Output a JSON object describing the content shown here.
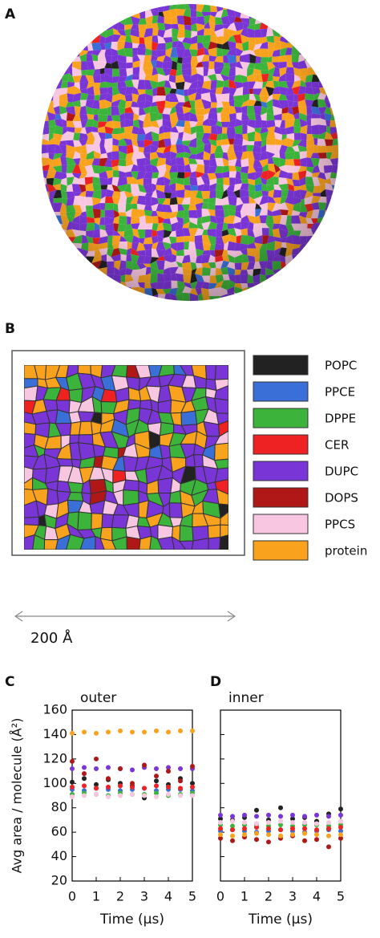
{
  "panels": [
    "A",
    "B",
    "C",
    "D"
  ],
  "legend": [
    {
      "name": "POPC",
      "color": "#222222"
    },
    {
      "name": "PPCE",
      "color": "#3a6fd8"
    },
    {
      "name": "DPPE",
      "color": "#3cb43c"
    },
    {
      "name": "CER",
      "color": "#ee2222"
    },
    {
      "name": "DUPC",
      "color": "#7a35d6"
    },
    {
      "name": "DOPS",
      "color": "#b01818"
    },
    {
      "name": "PPCS",
      "color": "#f8c6e0"
    },
    {
      "name": "protein",
      "color": "#f9a21e"
    }
  ],
  "scale_bar": "200 Å",
  "chart_data": [
    {
      "type": "scatter",
      "title": "outer",
      "xlabel": "Time (μs)",
      "ylabel": "Avg area / molecule (Å²)",
      "xlim": [
        0,
        5
      ],
      "xticks": [
        0,
        1,
        2,
        3,
        4,
        5
      ],
      "ylim": [
        20,
        160
      ],
      "yticks": [
        20,
        40,
        60,
        80,
        100,
        120,
        140,
        160
      ],
      "x": [
        0,
        0.5,
        1,
        1.5,
        2,
        2.5,
        3,
        3.5,
        4,
        4.5,
        5
      ],
      "series": [
        {
          "color": "#222222",
          "values": [
            101,
            104,
            99,
            103,
            100,
            98,
            88,
            102,
            99,
            104,
            100
          ]
        },
        {
          "color": "#3a6fd8",
          "values": [
            95,
            94,
            96,
            95,
            94,
            95,
            96,
            94,
            95,
            95,
            94
          ]
        },
        {
          "color": "#3cb43c",
          "values": [
            91,
            92,
            91,
            90,
            92,
            91,
            91,
            92,
            90,
            91,
            92
          ]
        },
        {
          "color": "#ee2222",
          "values": [
            97,
            98,
            96,
            97,
            98,
            97,
            96,
            98,
            97,
            96,
            97
          ]
        },
        {
          "color": "#7a35d6",
          "values": [
            112,
            113,
            112,
            113,
            112,
            111,
            113,
            112,
            113,
            112,
            112
          ]
        },
        {
          "color": "#b01818",
          "values": [
            118,
            108,
            120,
            104,
            112,
            100,
            115,
            106,
            110,
            102,
            114
          ]
        },
        {
          "color": "#f8c6e0",
          "values": [
            89,
            90,
            91,
            89,
            90,
            91,
            90,
            89,
            91,
            90,
            90
          ]
        },
        {
          "color": "#f9a21e",
          "values": [
            141,
            142,
            141,
            142,
            143,
            142,
            142,
            143,
            142,
            143,
            143
          ]
        }
      ]
    },
    {
      "type": "scatter",
      "title": "inner",
      "xlabel": "Time (μs)",
      "xlim": [
        0,
        5
      ],
      "xticks": [
        0,
        1,
        2,
        3,
        4,
        5
      ],
      "ylim": [
        20,
        160
      ],
      "yticks": [
        20,
        40,
        60,
        80,
        100,
        120,
        140,
        160
      ],
      "x": [
        0,
        0.5,
        1,
        1.5,
        2,
        2.5,
        3,
        3.5,
        4,
        4.5,
        5
      ],
      "series": [
        {
          "color": "#222222",
          "values": [
            71,
            70,
            72,
            78,
            70,
            80,
            71,
            72,
            69,
            75,
            79
          ]
        },
        {
          "color": "#3a6fd8",
          "values": [
            61,
            62,
            61,
            60,
            61,
            62,
            61,
            60,
            61,
            62,
            61
          ]
        },
        {
          "color": "#3cb43c",
          "values": [
            66,
            65,
            66,
            66,
            65,
            66,
            65,
            66,
            66,
            65,
            66
          ]
        },
        {
          "color": "#ee2222",
          "values": [
            63,
            62,
            63,
            64,
            63,
            62,
            63,
            63,
            62,
            63,
            64
          ]
        },
        {
          "color": "#7a35d6",
          "values": [
            74,
            73,
            74,
            73,
            74,
            73,
            74,
            73,
            74,
            73,
            74
          ]
        },
        {
          "color": "#b01818",
          "values": [
            55,
            53,
            56,
            54,
            52,
            55,
            57,
            53,
            54,
            48,
            55
          ]
        },
        {
          "color": "#f8c6e0",
          "values": [
            68,
            69,
            68,
            67,
            68,
            69,
            68,
            68,
            67,
            68,
            69
          ]
        },
        {
          "color": "#f9a21e",
          "values": [
            58,
            57,
            58,
            59,
            58,
            57,
            58,
            59,
            58,
            57,
            58
          ]
        }
      ]
    }
  ]
}
